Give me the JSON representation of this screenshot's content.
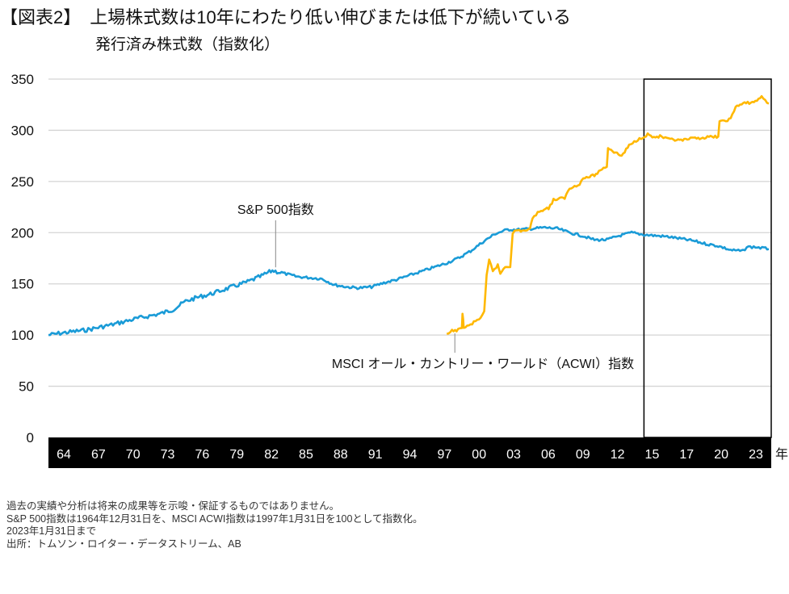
{
  "header": {
    "title": "【図表2】　上場株式数は10年にわたり低い伸びまたは低下が続いている",
    "subtitle": "発行済み株式数（指数化）"
  },
  "notes": [
    "過去の実績や分析は将来の成果等を示唆・保証するものではありません。",
    "S&P 500指数は1964年12月31日を、MSCI ACWI指数は1997年1月31日を100として指数化。",
    "2023年1月31日まで",
    "出所：トムソン・ロイター・データストリーム、AB"
  ],
  "chart_data": {
    "type": "line",
    "title": "発行済み株式数（指数化）",
    "xlabel": "年",
    "ylabel": "",
    "ylim": [
      0,
      350
    ],
    "xlim": [
      1964.92,
      2023.08
    ],
    "yticks": [
      0,
      50,
      100,
      150,
      200,
      250,
      300,
      350
    ],
    "xtick_labels": [
      "64",
      "67",
      "70",
      "73",
      "76",
      "79",
      "82",
      "85",
      "88",
      "91",
      "94",
      "97",
      "00",
      "03",
      "06",
      "09",
      "12",
      "15",
      "17",
      "20",
      "23"
    ],
    "x_unit_label": "年",
    "grid": true,
    "legend": "inline annotations",
    "highlight_box": {
      "from": 2013.0,
      "to": 2023.08,
      "note": "recent ~10-year period outlined"
    },
    "series": [
      {
        "name": "S&P 500指数",
        "color": "#1a9bd7",
        "label_anchor": [
          1983.0,
          163
        ],
        "points": [
          [
            1964.92,
            100
          ],
          [
            1966,
            102
          ],
          [
            1968,
            105
          ],
          [
            1970,
            110
          ],
          [
            1972,
            116
          ],
          [
            1974,
            121
          ],
          [
            1975,
            125
          ],
          [
            1976,
            133
          ],
          [
            1977,
            137
          ],
          [
            1978,
            140
          ],
          [
            1979,
            144
          ],
          [
            1980,
            148
          ],
          [
            1981,
            152
          ],
          [
            1982,
            157
          ],
          [
            1983,
            163
          ],
          [
            1984,
            160
          ],
          [
            1985,
            157
          ],
          [
            1986,
            156
          ],
          [
            1987,
            155
          ],
          [
            1988,
            149
          ],
          [
            1989,
            147
          ],
          [
            1990,
            146
          ],
          [
            1991,
            147
          ],
          [
            1992,
            151
          ],
          [
            1993,
            154
          ],
          [
            1994,
            158
          ],
          [
            1995,
            162
          ],
          [
            1996,
            166
          ],
          [
            1997,
            170
          ],
          [
            1998,
            175
          ],
          [
            1999,
            182
          ],
          [
            2000,
            191
          ],
          [
            2001,
            199
          ],
          [
            2002,
            203
          ],
          [
            2003,
            203
          ],
          [
            2004,
            204
          ],
          [
            2005,
            205
          ],
          [
            2006,
            204
          ],
          [
            2007,
            200
          ],
          [
            2008,
            197
          ],
          [
            2009,
            193
          ],
          [
            2010,
            193
          ],
          [
            2011,
            197
          ],
          [
            2012,
            200
          ],
          [
            2013,
            198
          ],
          [
            2014,
            197
          ],
          [
            2015,
            196
          ],
          [
            2016,
            194
          ],
          [
            2017,
            192
          ],
          [
            2018,
            189
          ],
          [
            2019,
            187
          ],
          [
            2020,
            183
          ],
          [
            2021,
            182
          ],
          [
            2021.3,
            186
          ],
          [
            2022,
            186
          ],
          [
            2023.08,
            184
          ]
        ]
      },
      {
        "name": "MSCI オール・カントリー・ワールド（ACWI）指数",
        "color": "#ffb800",
        "label_anchor": [
          1997.6,
          104
        ],
        "points": [
          [
            1997.08,
            100
          ],
          [
            1997.5,
            104
          ],
          [
            1998,
            105
          ],
          [
            1998.3,
            106
          ],
          [
            1998.35,
            122
          ],
          [
            1998.45,
            107
          ],
          [
            1999,
            110
          ],
          [
            1999.8,
            117
          ],
          [
            2000.1,
            122
          ],
          [
            2000.3,
            158
          ],
          [
            2000.5,
            173
          ],
          [
            2000.8,
            163
          ],
          [
            2001.2,
            168
          ],
          [
            2001.4,
            160
          ],
          [
            2001.8,
            167
          ],
          [
            2002.2,
            167
          ],
          [
            2002.4,
            200
          ],
          [
            2002.7,
            202
          ],
          [
            2003.3,
            202
          ],
          [
            2003.8,
            203
          ],
          [
            2004.0,
            215
          ],
          [
            2004.7,
            222
          ],
          [
            2005.3,
            224
          ],
          [
            2005.7,
            232
          ],
          [
            2006.6,
            234
          ],
          [
            2007.0,
            243
          ],
          [
            2007.8,
            248
          ],
          [
            2008.1,
            253
          ],
          [
            2009.0,
            256
          ],
          [
            2009.6,
            262
          ],
          [
            2010.0,
            265
          ],
          [
            2010.1,
            283
          ],
          [
            2010.7,
            278
          ],
          [
            2011.2,
            275
          ],
          [
            2011.8,
            285
          ],
          [
            2012.5,
            291
          ],
          [
            2013.3,
            296
          ],
          [
            2013.8,
            293
          ],
          [
            2014.3,
            294
          ],
          [
            2015,
            291
          ],
          [
            2016,
            290
          ],
          [
            2017,
            292
          ],
          [
            2018,
            293
          ],
          [
            2019,
            294
          ],
          [
            2019.1,
            308
          ],
          [
            2020,
            311
          ],
          [
            2020.4,
            323
          ],
          [
            2021,
            326
          ],
          [
            2022,
            328
          ],
          [
            2022.5,
            333
          ],
          [
            2023.08,
            326
          ]
        ]
      }
    ]
  }
}
